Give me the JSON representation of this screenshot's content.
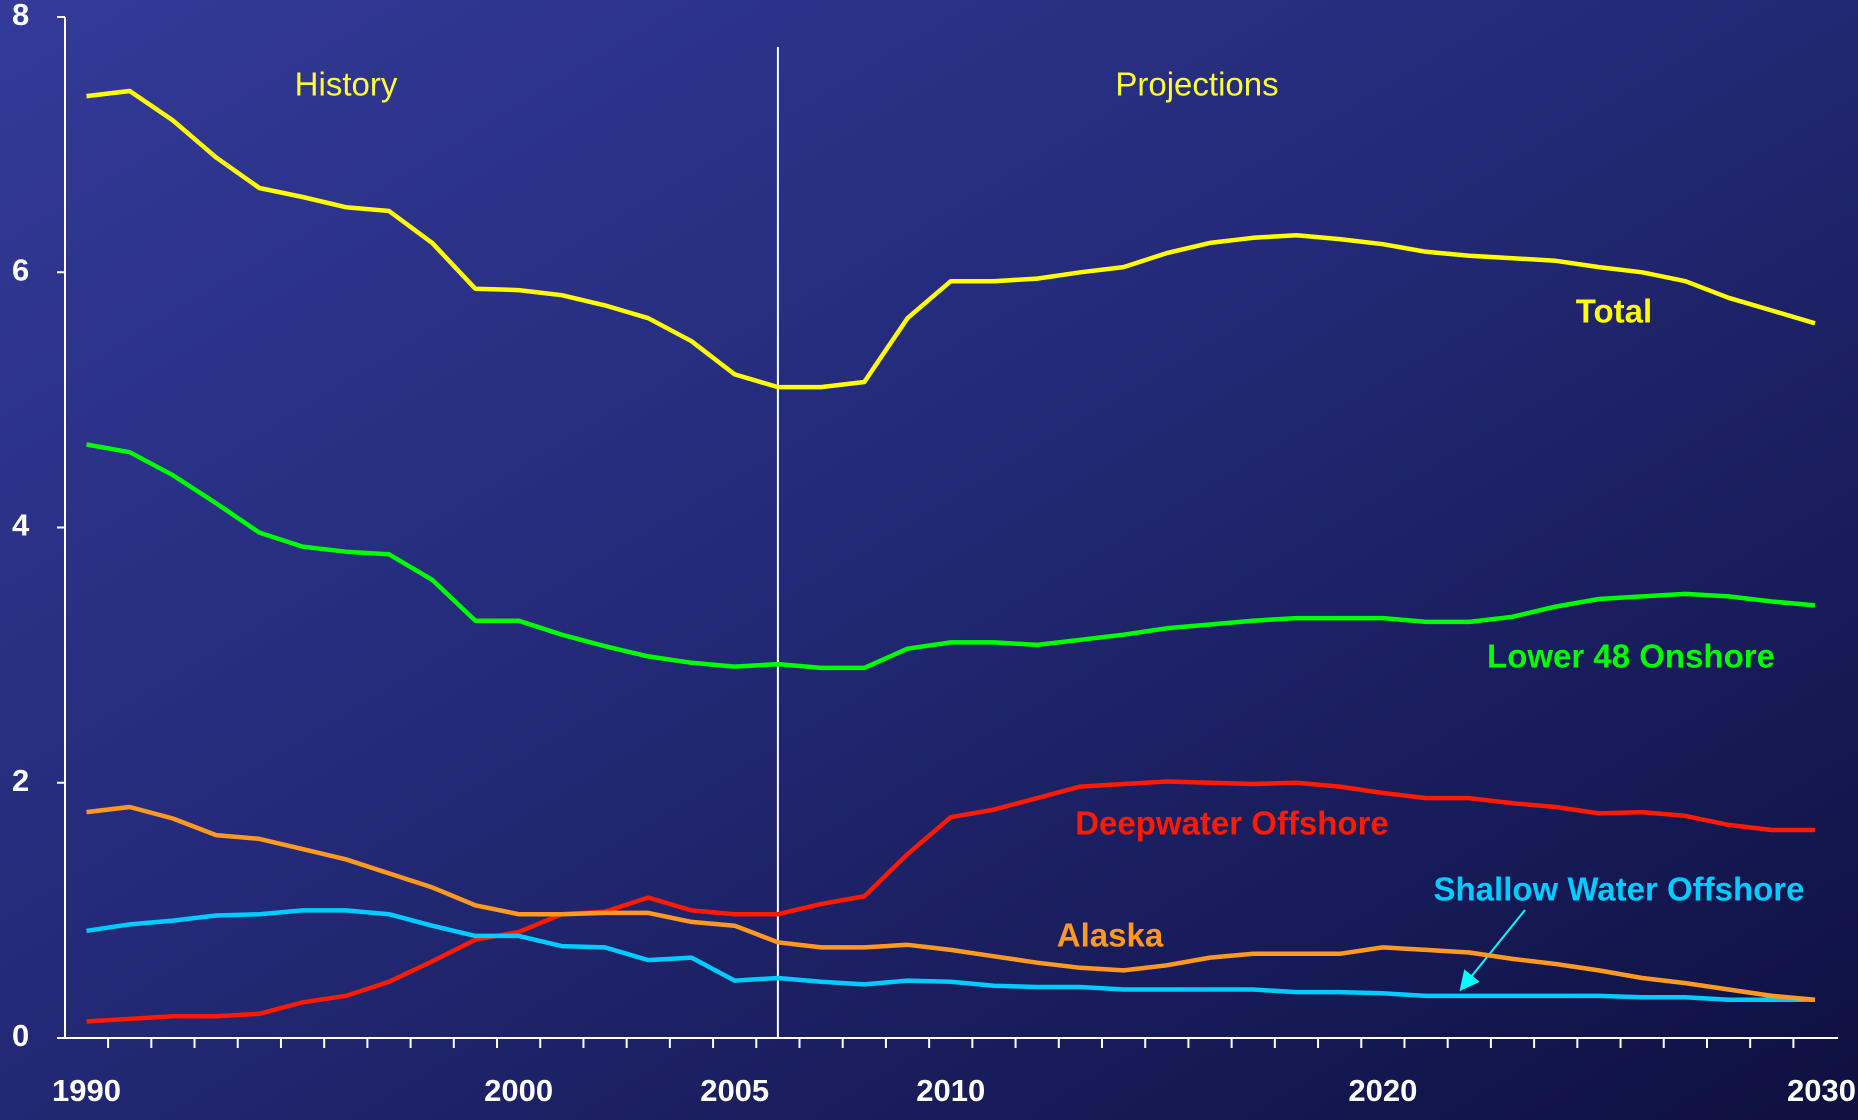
{
  "chart_data": {
    "type": "line",
    "annotations": [
      "History",
      "Projections"
    ],
    "categories": [
      "1990",
      null,
      null,
      null,
      null,
      null,
      null,
      null,
      null,
      null,
      "2000",
      null,
      null,
      null,
      null,
      "2005",
      null,
      null,
      null,
      null,
      "2010",
      null,
      null,
      null,
      null,
      null,
      null,
      null,
      null,
      null,
      "2020",
      null,
      null,
      null,
      null,
      null,
      null,
      null,
      null,
      null,
      "2030"
    ],
    "series": [
      {
        "name": "Total",
        "color": "#ffff00",
        "values": [
          7.38,
          7.42,
          7.19,
          6.9,
          6.66,
          6.59,
          6.51,
          6.48,
          6.23,
          5.87,
          5.86,
          5.82,
          5.74,
          5.64,
          5.46,
          5.2,
          5.1,
          5.1,
          5.14,
          5.64,
          5.93,
          5.93,
          5.95,
          6.0,
          6.04,
          6.15,
          6.23,
          6.27,
          6.29,
          6.26,
          6.22,
          6.16,
          6.13,
          6.11,
          6.09,
          6.04,
          6.0,
          5.93,
          5.8,
          5.7,
          5.6
        ]
      },
      {
        "name": "Lower 48 Onshore",
        "color": "#00ff00",
        "values": [
          4.65,
          4.59,
          4.41,
          4.19,
          3.96,
          3.85,
          3.81,
          3.79,
          3.59,
          3.27,
          3.27,
          3.16,
          3.07,
          2.99,
          2.94,
          2.91,
          2.93,
          2.9,
          2.9,
          3.05,
          3.1,
          3.1,
          3.08,
          3.12,
          3.16,
          3.21,
          3.24,
          3.27,
          3.29,
          3.29,
          3.29,
          3.26,
          3.26,
          3.3,
          3.38,
          3.44,
          3.46,
          3.48,
          3.46,
          3.42,
          3.39
        ]
      },
      {
        "name": "Deepwater Offshore",
        "color": "#ff1a00",
        "values": [
          0.13,
          0.15,
          0.17,
          0.17,
          0.19,
          0.28,
          0.33,
          0.44,
          0.6,
          0.77,
          0.83,
          0.97,
          0.99,
          1.1,
          1.0,
          0.97,
          0.97,
          1.05,
          1.11,
          1.44,
          1.73,
          1.79,
          1.88,
          1.97,
          1.99,
          2.01,
          2.0,
          1.99,
          2.0,
          1.97,
          1.92,
          1.88,
          1.88,
          1.84,
          1.81,
          1.76,
          1.77,
          1.74,
          1.67,
          1.63,
          1.63
        ]
      },
      {
        "name": "Shallow Water Offshore",
        "color": "#00ccff",
        "values": [
          0.84,
          0.89,
          0.92,
          0.96,
          0.97,
          1.0,
          1.0,
          0.97,
          0.88,
          0.8,
          0.8,
          0.72,
          0.71,
          0.61,
          0.63,
          0.45,
          0.47,
          0.44,
          0.42,
          0.45,
          0.44,
          0.41,
          0.4,
          0.4,
          0.38,
          0.38,
          0.38,
          0.38,
          0.36,
          0.36,
          0.35,
          0.33,
          0.33,
          0.33,
          0.33,
          0.33,
          0.32,
          0.32,
          0.3,
          0.3,
          0.3
        ]
      },
      {
        "name": "Alaska",
        "color": "#ff9922",
        "values": [
          1.77,
          1.81,
          1.72,
          1.59,
          1.56,
          1.48,
          1.4,
          1.29,
          1.18,
          1.04,
          0.97,
          0.97,
          0.98,
          0.98,
          0.91,
          0.88,
          0.75,
          0.71,
          0.71,
          0.73,
          0.69,
          0.64,
          0.59,
          0.55,
          0.53,
          0.57,
          0.63,
          0.66,
          0.66,
          0.66,
          0.71,
          0.69,
          0.67,
          0.62,
          0.58,
          0.53,
          0.47,
          0.43,
          0.38,
          0.33,
          0.3
        ]
      }
    ],
    "ylim": [
      0,
      8
    ],
    "yticks": [
      0,
      2,
      4,
      6,
      8
    ]
  }
}
